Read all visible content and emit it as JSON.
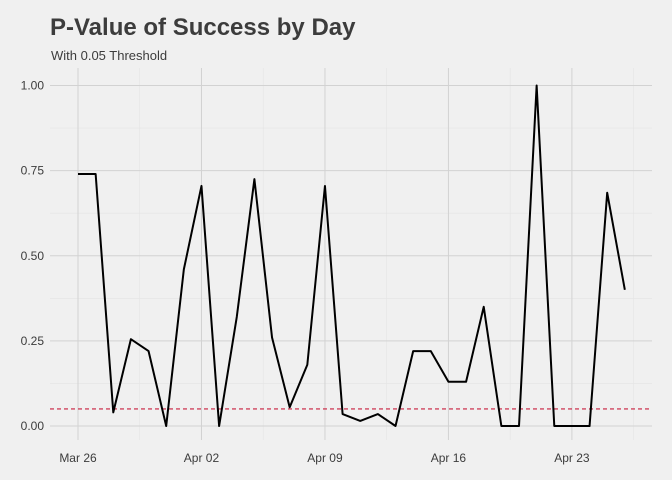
{
  "chart_data": {
    "type": "line",
    "title": "P-Value of Success by Day",
    "subtitle": "With 0.05 Threshold",
    "xlabel": "",
    "ylabel": "",
    "x_ticks": [
      "Mar 26",
      "Apr 02",
      "Apr 09",
      "Apr 16",
      "Apr 23"
    ],
    "x_start": "2024-03-26",
    "x": [
      "2024-03-26",
      "2024-03-27",
      "2024-03-28",
      "2024-03-29",
      "2024-03-30",
      "2024-03-31",
      "2024-04-01",
      "2024-04-02",
      "2024-04-03",
      "2024-04-04",
      "2024-04-05",
      "2024-04-06",
      "2024-04-07",
      "2024-04-08",
      "2024-04-09",
      "2024-04-10",
      "2024-04-11",
      "2024-04-12",
      "2024-04-13",
      "2024-04-14",
      "2024-04-15",
      "2024-04-16",
      "2024-04-17",
      "2024-04-18",
      "2024-04-19",
      "2024-04-20",
      "2024-04-21",
      "2024-04-22",
      "2024-04-23",
      "2024-04-24",
      "2024-04-25",
      "2024-04-26"
    ],
    "y": [
      0.74,
      0.74,
      0.04,
      0.255,
      0.22,
      0.0,
      0.46,
      0.705,
      0.0,
      0.32,
      0.725,
      0.26,
      0.055,
      0.18,
      0.705,
      0.035,
      0.015,
      0.035,
      0.0,
      0.22,
      0.22,
      0.13,
      0.13,
      0.35,
      0.0,
      0.0,
      1.0,
      0.0,
      0.0,
      0.0,
      0.685,
      0.4
    ],
    "y_ticks": [
      "0.00",
      "0.25",
      "0.50",
      "0.75",
      "1.00"
    ],
    "y_tick_values": [
      0,
      0.25,
      0.5,
      0.75,
      1.0
    ],
    "ylim": [
      -0.02,
      1.05
    ],
    "threshold": 0.05,
    "colors": {
      "line": "#000000",
      "threshold": "#c81e3c",
      "background": "#f0f0f0",
      "grid": "#d2d2d2"
    },
    "grid": true,
    "legend": "none"
  }
}
